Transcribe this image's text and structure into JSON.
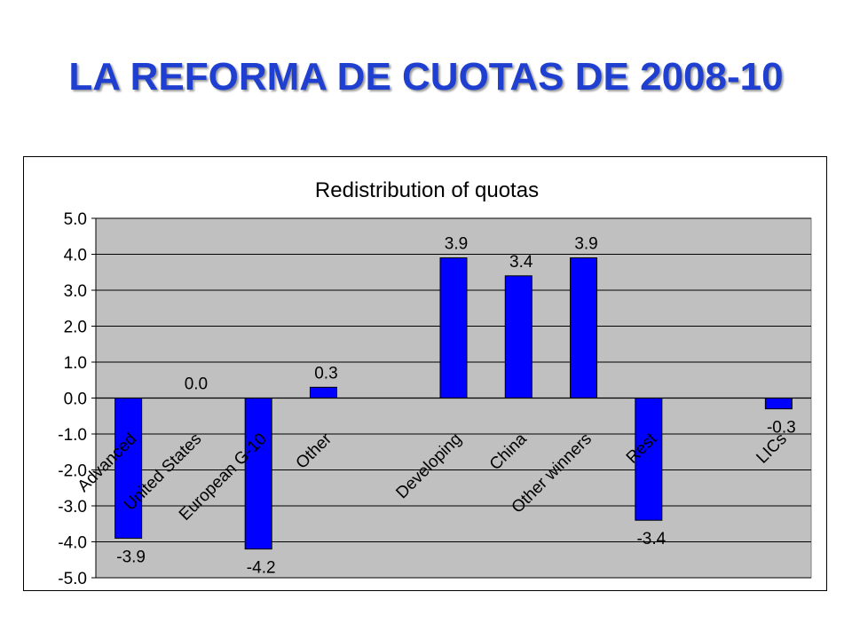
{
  "slide": {
    "title": "LA REFORMA DE CUOTAS DE 2008-10"
  },
  "colors": {
    "bar": "#0000ff",
    "plot_bg": "#c0c0c0",
    "title": "#1f3fd0"
  },
  "chart_data": {
    "type": "bar",
    "title": "Redistribution of quotas",
    "categories": [
      "Advanced",
      "United States",
      "European G-10",
      "Other",
      "",
      "Developing",
      "China",
      "Other winners",
      "Rest",
      "",
      "LICs"
    ],
    "values": [
      -3.9,
      0.0,
      -4.2,
      0.3,
      null,
      3.9,
      3.4,
      3.9,
      -3.4,
      null,
      -0.3
    ],
    "data_labels": [
      "-3.9",
      "0.0",
      "-4.2",
      "0.3",
      "",
      "3.9",
      "3.4",
      "3.9",
      "-3.4",
      "",
      "-0.3"
    ],
    "ylim": [
      -5.0,
      5.0
    ],
    "yticks": [
      "5.0",
      "4.0",
      "3.0",
      "2.0",
      "1.0",
      "0.0",
      "-1.0",
      "-2.0",
      "-3.0",
      "-4.0",
      "-5.0"
    ],
    "grid": true,
    "legend": "none"
  }
}
